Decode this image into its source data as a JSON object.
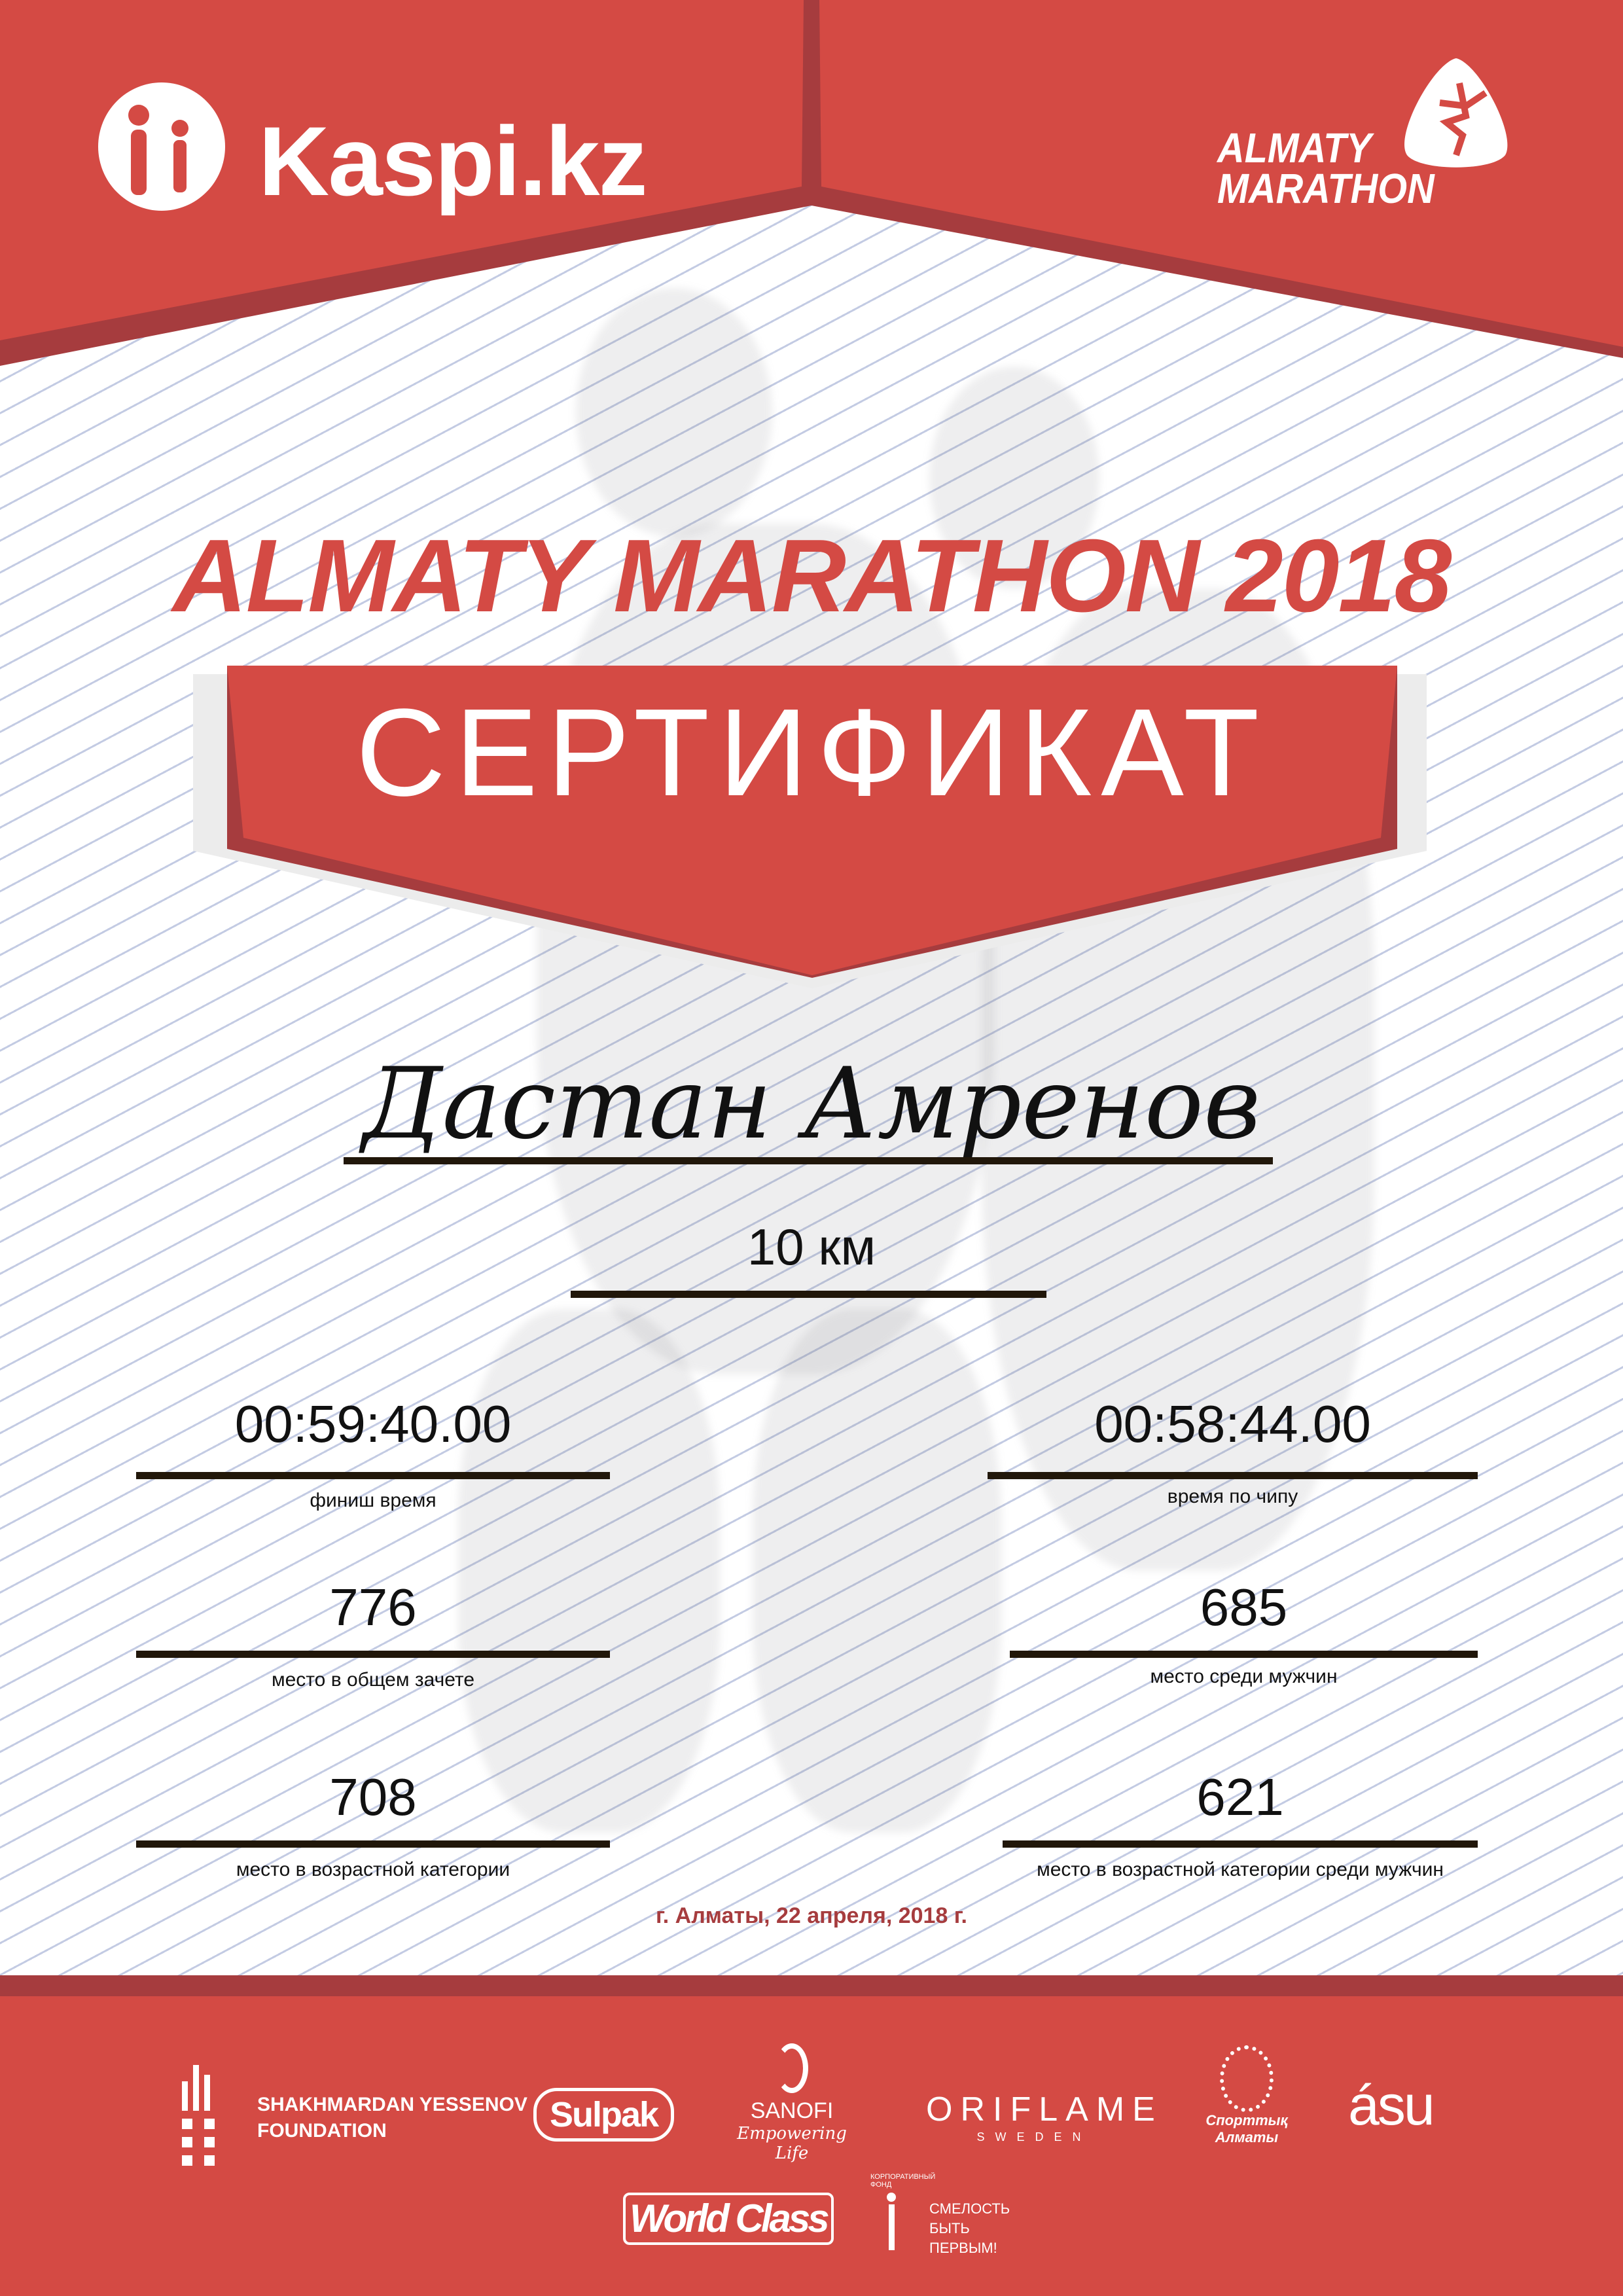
{
  "colors": {
    "primary_red": "#d44a44",
    "dark_red": "#a63c3e",
    "text": "#111111",
    "rule": "#21170a"
  },
  "header": {
    "sponsor_logo": "Kaspi.kz",
    "event_logo_line1": "ALMATY",
    "event_logo_line2": "MARATHON"
  },
  "title": "ALMATY MARATHON 2018",
  "banner": "СЕРТИФИКАТ",
  "participant": {
    "name": "Дастан Амренов",
    "distance": "10 км"
  },
  "results": {
    "finish_time": {
      "value": "00:59:40.00",
      "label": "финиш время"
    },
    "chip_time": {
      "value": "00:58:44.00",
      "label": "время по чипу"
    },
    "overall_place": {
      "value": "776",
      "label": "место в общем зачете"
    },
    "gender_place": {
      "value": "685",
      "label": "место среди мужчин"
    },
    "age_place": {
      "value": "708",
      "label": "место в возрастной категории"
    },
    "age_gender_place": {
      "value": "621",
      "label": "место в возрастной категории среди мужчин"
    }
  },
  "date": "г. Алматы, 22 апреля, 2018 г.",
  "sponsors": {
    "yessenov": [
      "SHAKHMARDAN YESSENOV",
      "FOUNDATION"
    ],
    "sulpak": "Sulpak",
    "sanofi": [
      "SANOFI",
      "Empowering Life"
    ],
    "oriflame": [
      "ORIFLAME",
      "SWEDEN"
    ],
    "sport_almaty": [
      "Спорттық",
      "Алматы"
    ],
    "asu": "ásu",
    "worldclass": "World Class",
    "fund": [
      "СМЕЛОСТЬ",
      "БЫТЬ",
      "ПЕРВЫМ!"
    ],
    "fund_arc": "КОРПОРАТИВНЫЙ ФОНД"
  }
}
